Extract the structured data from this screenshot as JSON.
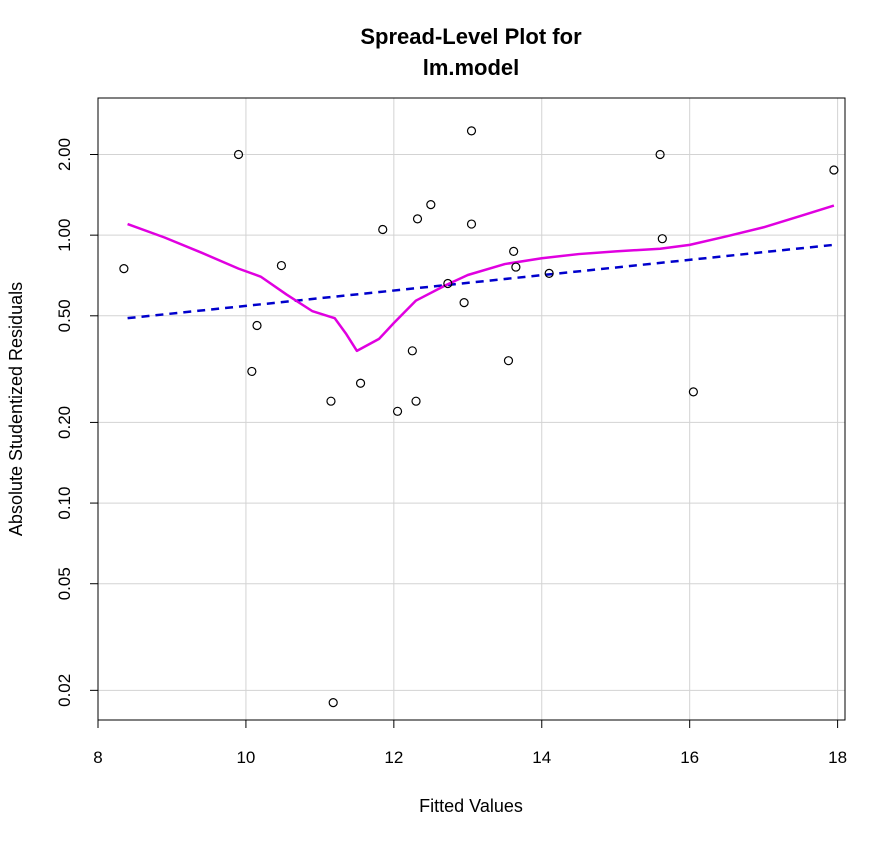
{
  "chart_data": {
    "type": "scatter",
    "title": [
      "Spread-Level Plot for",
      "lm.model"
    ],
    "xlabel": "Fitted Values",
    "ylabel": "Absolute Studentized Residuals",
    "xlim": [
      8.0,
      18.1
    ],
    "ylim": [
      0.0155,
      3.25
    ],
    "y_scale": "log",
    "x_ticks": [
      8,
      10,
      12,
      14,
      16,
      18
    ],
    "x_tick_labels": [
      "8",
      "10",
      "12",
      "14",
      "16",
      "18"
    ],
    "y_ticks": [
      0.02,
      0.05,
      0.1,
      0.2,
      0.5,
      1.0,
      2.0
    ],
    "y_tick_labels": [
      "0.02",
      "0.05",
      "0.10",
      "0.20",
      "0.50",
      "1.00",
      "2.00"
    ],
    "grid": true,
    "points": [
      {
        "x": 8.35,
        "y": 0.75
      },
      {
        "x": 9.9,
        "y": 2.0
      },
      {
        "x": 10.08,
        "y": 0.31
      },
      {
        "x": 10.15,
        "y": 0.46
      },
      {
        "x": 10.48,
        "y": 0.77
      },
      {
        "x": 11.15,
        "y": 0.24
      },
      {
        "x": 11.18,
        "y": 0.018
      },
      {
        "x": 11.55,
        "y": 0.28
      },
      {
        "x": 11.85,
        "y": 1.05
      },
      {
        "x": 12.05,
        "y": 0.22
      },
      {
        "x": 12.25,
        "y": 0.37
      },
      {
        "x": 12.3,
        "y": 0.24
      },
      {
        "x": 12.32,
        "y": 1.15
      },
      {
        "x": 12.5,
        "y": 1.3
      },
      {
        "x": 12.73,
        "y": 0.66
      },
      {
        "x": 12.95,
        "y": 0.56
      },
      {
        "x": 13.05,
        "y": 1.1
      },
      {
        "x": 13.05,
        "y": 2.45
      },
      {
        "x": 13.55,
        "y": 0.34
      },
      {
        "x": 13.62,
        "y": 0.87
      },
      {
        "x": 13.65,
        "y": 0.76
      },
      {
        "x": 14.1,
        "y": 0.72
      },
      {
        "x": 15.6,
        "y": 2.0
      },
      {
        "x": 15.63,
        "y": 0.97
      },
      {
        "x": 16.05,
        "y": 0.26
      },
      {
        "x": 17.95,
        "y": 1.75
      }
    ],
    "series": [
      {
        "style": "dashed",
        "color": "#0000cc",
        "x": [
          8.4,
          17.95
        ],
        "y": [
          0.49,
          0.92
        ]
      },
      {
        "style": "solid",
        "color": "#e000e0",
        "x": [
          8.4,
          8.9,
          9.4,
          9.9,
          10.2,
          10.55,
          10.9,
          11.2,
          11.35,
          11.5,
          11.8,
          12.0,
          12.3,
          12.7,
          13.0,
          13.5,
          14.0,
          14.5,
          15.0,
          15.6,
          16.0,
          16.5,
          17.0,
          17.5,
          17.95
        ],
        "y": [
          1.1,
          0.98,
          0.86,
          0.75,
          0.7,
          0.6,
          0.52,
          0.49,
          0.43,
          0.37,
          0.41,
          0.47,
          0.57,
          0.65,
          0.71,
          0.78,
          0.82,
          0.85,
          0.87,
          0.89,
          0.92,
          0.99,
          1.07,
          1.18,
          1.29
        ]
      }
    ]
  }
}
